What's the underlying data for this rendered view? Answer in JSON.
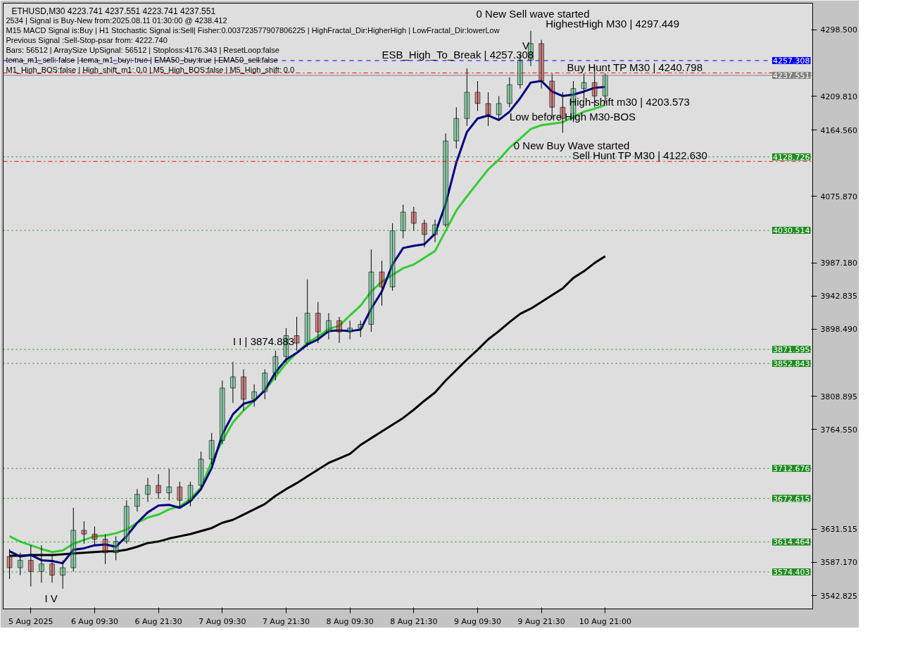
{
  "chart_data": {
    "type": "candlestick",
    "title": "ETHUSD,M30  4223.741 4237.551 4223.741 4237.551",
    "categories": [
      null,
      null,
      "5 Aug 2025",
      null,
      null,
      null,
      null,
      null,
      "6 Aug 09:30",
      null,
      null,
      null,
      null,
      null,
      "6 Aug 21:30",
      null,
      null,
      null,
      null,
      null,
      "7 Aug 09:30",
      null,
      null,
      null,
      null,
      null,
      "7 Aug 21:30",
      null,
      null,
      null,
      null,
      null,
      "8 Aug 09:30",
      null,
      null,
      null,
      null,
      null,
      "8 Aug 21:30",
      null,
      null,
      null,
      null,
      null,
      "9 Aug 09:30",
      null,
      null,
      null,
      null,
      null,
      "9 Aug 21:30",
      null,
      null,
      null,
      null,
      null,
      "10 Aug 21:00"
    ],
    "ohlc": [
      [
        3595,
        3605,
        3565,
        3580
      ],
      [
        3580,
        3600,
        3570,
        3590
      ],
      [
        3590,
        3610,
        3555,
        3575
      ],
      [
        3575,
        3610,
        3560,
        3585
      ],
      [
        3585,
        3598,
        3560,
        3570
      ],
      [
        3570,
        3590,
        3552,
        3580
      ],
      [
        3580,
        3660,
        3575,
        3630
      ],
      [
        3630,
        3642,
        3612,
        3625
      ],
      [
        3625,
        3635,
        3610,
        3618
      ],
      [
        3618,
        3625,
        3585,
        3600
      ],
      [
        3600,
        3622,
        3590,
        3615
      ],
      [
        3615,
        3670,
        3612,
        3662
      ],
      [
        3662,
        3685,
        3655,
        3678
      ],
      [
        3678,
        3700,
        3668,
        3690
      ],
      [
        3690,
        3705,
        3672,
        3680
      ],
      [
        3680,
        3712,
        3670,
        3688
      ],
      [
        3688,
        3695,
        3660,
        3670
      ],
      [
        3670,
        3695,
        3662,
        3690
      ],
      [
        3690,
        3735,
        3685,
        3725
      ],
      [
        3725,
        3760,
        3718,
        3750
      ],
      [
        3750,
        3830,
        3745,
        3820
      ],
      [
        3820,
        3855,
        3800,
        3835
      ],
      [
        3835,
        3845,
        3790,
        3805
      ],
      [
        3805,
        3825,
        3795,
        3815
      ],
      [
        3815,
        3845,
        3805,
        3840
      ],
      [
        3840,
        3870,
        3830,
        3862
      ],
      [
        3862,
        3900,
        3855,
        3890
      ],
      [
        3890,
        3915,
        3870,
        3880
      ],
      [
        3880,
        3965,
        3875,
        3920
      ],
      [
        3920,
        3935,
        3880,
        3895
      ],
      [
        3895,
        3920,
        3885,
        3910
      ],
      [
        3910,
        3915,
        3880,
        3895
      ],
      [
        3895,
        3910,
        3885,
        3900
      ],
      [
        3900,
        3910,
        3888,
        3905
      ],
      [
        3905,
        4005,
        3895,
        3975
      ],
      [
        3975,
        3990,
        3930,
        3955
      ],
      [
        3955,
        4040,
        3950,
        4030
      ],
      [
        4030,
        4065,
        4020,
        4055
      ],
      [
        4055,
        4062,
        4030,
        4040
      ],
      [
        4040,
        4045,
        4008,
        4025
      ],
      [
        4025,
        4045,
        4015,
        4038
      ],
      [
        4038,
        4160,
        4035,
        4150
      ],
      [
        4150,
        4195,
        4140,
        4180
      ],
      [
        4180,
        4247,
        4170,
        4215
      ],
      [
        4215,
        4230,
        4190,
        4200
      ],
      [
        4200,
        4215,
        4170,
        4185
      ],
      [
        4185,
        4210,
        4178,
        4200
      ],
      [
        4200,
        4235,
        4195,
        4225
      ],
      [
        4225,
        4266,
        4220,
        4258
      ],
      [
        4258,
        4297,
        4250,
        4280
      ],
      [
        4280,
        4285,
        4220,
        4230
      ],
      [
        4230,
        4240,
        4180,
        4195
      ],
      [
        4195,
        4215,
        4161,
        4180
      ],
      [
        4180,
        4230,
        4175,
        4220
      ],
      [
        4220,
        4240,
        4205,
        4228
      ],
      [
        4228,
        4250,
        4195,
        4210
      ],
      [
        4210,
        4240,
        4200,
        4237.551
      ]
    ],
    "series": [
      {
        "type": "line",
        "color": "#000000",
        "values": [
          3596,
          3596,
          3597,
          3597,
          3597,
          3598,
          3599,
          3600,
          3601,
          3602,
          3602,
          3604,
          3608,
          3613,
          3615,
          3619,
          3622,
          3625,
          3629,
          3633,
          3640,
          3644,
          3651,
          3658,
          3665,
          3676,
          3685,
          3693,
          3702,
          3711,
          3720,
          3726,
          3732,
          3744,
          3753,
          3762,
          3771,
          3780,
          3791,
          3803,
          3814,
          3830,
          3844,
          3858,
          3871,
          3885,
          3896,
          3908,
          3919,
          3926,
          3935,
          3944,
          3953,
          3967,
          3976,
          3987,
          3996
        ]
      },
      {
        "type": "line",
        "color": "#32cd32",
        "values": [
          3622,
          3615,
          3610,
          3605,
          3601,
          3603,
          3612,
          3617,
          3622,
          3623,
          3626,
          3631,
          3640,
          3647,
          3651,
          3658,
          3662,
          3672,
          3687,
          3722,
          3749,
          3774,
          3790,
          3803,
          3817,
          3835,
          3853,
          3867,
          3880,
          3889,
          3899,
          3903,
          3917,
          3930,
          3949,
          3962,
          3971,
          3980,
          3985,
          3994,
          4003,
          4030,
          4057,
          4076,
          4094,
          4112,
          4125,
          4141,
          4153,
          4166,
          4171,
          4173,
          4175,
          4182,
          4189,
          4193,
          4198
        ]
      },
      {
        "type": "line",
        "color": "#000080",
        "values": [
          3602,
          3595,
          3597,
          3590,
          3589,
          3586,
          3604,
          3606,
          3610,
          3611,
          3608,
          3622,
          3640,
          3654,
          3663,
          3664,
          3660,
          3669,
          3685,
          3713,
          3758,
          3785,
          3799,
          3803,
          3817,
          3841,
          3858,
          3867,
          3878,
          3885,
          3896,
          3897,
          3896,
          3898,
          3926,
          3949,
          3985,
          4007,
          4010,
          4012,
          4026,
          4066,
          4121,
          4162,
          4180,
          4184,
          4178,
          4189,
          4207,
          4228,
          4230,
          4216,
          4210,
          4212,
          4216,
          4221,
          4222
        ]
      }
    ],
    "ylim": [
      3525,
      4334
    ],
    "yticks": [
      {
        "value": 4298.5,
        "label": "4298.500"
      },
      {
        "value": 4209.81,
        "label": "4209.810"
      },
      {
        "value": 4164.56,
        "label": "4164.560"
      },
      {
        "value": 4075.87,
        "label": "4075.870"
      },
      {
        "value": 3987.18,
        "label": "3987.180"
      },
      {
        "value": 3942.835,
        "label": "3942.835"
      },
      {
        "value": 3898.49,
        "label": "3898.490"
      },
      {
        "value": 3808.895,
        "label": "3808.895"
      },
      {
        "value": 3764.55,
        "label": "3764.550"
      },
      {
        "value": 3631.515,
        "label": "3631.515"
      },
      {
        "value": 3587.17,
        "label": "3587.170"
      },
      {
        "value": 3542.825,
        "label": "3542.825"
      }
    ],
    "ref_lines": [
      {
        "axis": "y",
        "value": 4257.308,
        "label": "4257.308",
        "color": "#0000ff",
        "line_style": "dashed"
      },
      {
        "axis": "y",
        "value": 4237.551,
        "label": "4237.551",
        "color": "#808080",
        "line_style": "solid"
      },
      {
        "axis": "y",
        "value": 4240.798,
        "color": "#ff0000",
        "line_style": "dashdot"
      },
      {
        "axis": "y",
        "value": 4122.63,
        "color": "#ff0000",
        "line_style": "dashdot"
      },
      {
        "axis": "y",
        "value": 4128.726,
        "label": "4128.726",
        "color": "#228b22",
        "line_style": "dotted"
      },
      {
        "axis": "y",
        "value": 4030.514,
        "label": "4030.514",
        "color": "#228b22",
        "line_style": "dotted"
      },
      {
        "axis": "y",
        "value": 3871.595,
        "label": "3871.595",
        "color": "#228b22",
        "line_style": "dotted"
      },
      {
        "axis": "y",
        "value": 3852.843,
        "label": "3852.843",
        "color": "#228b22",
        "line_style": "dotted"
      },
      {
        "axis": "y",
        "value": 3712.676,
        "label": "3712.676",
        "color": "#228b22",
        "line_style": "dotted"
      },
      {
        "axis": "y",
        "value": 3672.615,
        "label": "3672.615",
        "color": "#228b22",
        "line_style": "dotted"
      },
      {
        "axis": "y",
        "value": 3614.464,
        "label": "3614.464",
        "color": "#228b22",
        "line_style": "dotted"
      },
      {
        "axis": "y",
        "value": 3574.403,
        "label": "3574.403",
        "color": "#228b22",
        "line_style": "dotted"
      }
    ],
    "annotations": [
      "2534 | Signal is Buy-New from:2025.08.11 01:30:00 @ 4238.412",
      "M15 MACD Signal is:Buy | H1 Stochastic Signal is:Sell| Fisher:0.003723577907806225 | HighFractal_Dir:HigherHigh | LowFractal_Dir:lowerLow",
      "Previous Signal :Sell-Stop-psar from: 4222.740",
      "Bars: 56512 | ArraySize UpSignal: 56512 | Stoploss:4176.343 | ResetLoop:false",
      "tema_m1_sell: false | tema_m1_buy: true | EMA50_buy:true | EMA50_sell:false",
      "M1_High_BOS:false | High_shift_m1: 0.0 | M5_High_BOS:false | M5_High_shift: 0.0",
      {
        "text": "ESB_High_To_Break | 4257.308",
        "y": 4257.308
      },
      "0 New Sell wave started",
      "HighestHigh   M30 | 4297.449",
      {
        "text": "Buy Hunt TP M30 | 4240.798",
        "y": 4240.798
      },
      "High-shift m30 | 4203.573",
      {
        "text": "Low before High  M30-BOS",
        "y": 4191
      },
      "0 New Buy Wave started",
      {
        "text": "Sell Hunt TP M30 | 4122.630",
        "y": 4122.63
      },
      {
        "text": "I I | 3874.883",
        "y": 3874.883
      },
      "I V",
      {
        "text": "V",
        "y": 4278
      }
    ]
  }
}
